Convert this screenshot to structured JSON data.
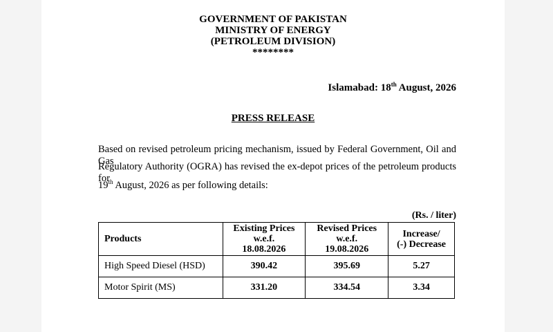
{
  "header": {
    "lines": [
      "GOVERNMENT OF PAKISTAN",
      "MINISTRY OF ENERGY",
      "(PETROLEUM DIVISION)",
      "********"
    ]
  },
  "dateline": {
    "prefix": "Islamabad: 18",
    "suffix": "th",
    "rest": " August, 2026"
  },
  "press_release": {
    "title": "PRESS RELEASE",
    "lines": [
      "Based on revised petroleum pricing mechanism, issued by Federal Government, Oil and Gas",
      "Regulatory Authority (OGRA) has revised the ex-depot prices of the petroleum products for"
    ],
    "last_line": {
      "day": "19",
      "suffix": "th",
      "rest": " August, 2026 as per following details:"
    }
  },
  "table": {
    "unit": "(Rs. / liter)",
    "header": [
      "Products",
      "Existing Prices\nw.e.f.\n18.08.2026",
      "Revised Prices\nw.e.f.\n19.08.2026",
      "Increase/\n(-) Decrease"
    ],
    "rows": [
      [
        "High Speed Diesel (HSD)",
        "390.42",
        "395.69",
        "5.27"
      ],
      [
        "Motor Spirit (MS)",
        "331.20",
        "334.54",
        "3.34"
      ]
    ]
  }
}
